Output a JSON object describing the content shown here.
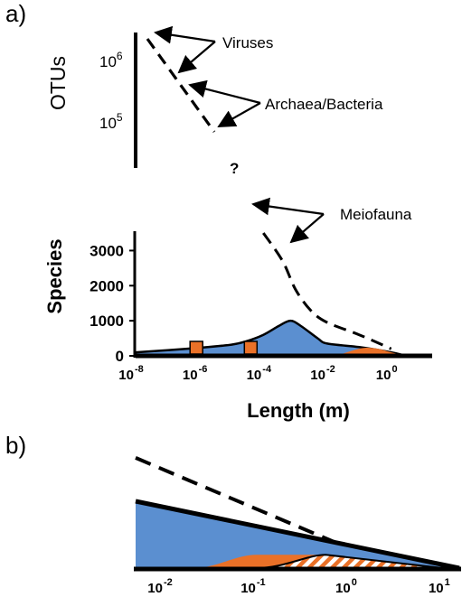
{
  "panel_a_label": "a)",
  "panel_b_label": "b)",
  "chart_data": [
    {
      "panel": "a) upper",
      "type": "line",
      "ylabel": "OTUs",
      "yscale": "log",
      "yticks": [
        {
          "base": "10",
          "exp": "6"
        },
        {
          "base": "10",
          "exp": "5"
        }
      ],
      "annotations": [
        "Viruses",
        "Archaea/Bacteria",
        "?"
      ]
    },
    {
      "panel": "a) lower",
      "type": "area",
      "xlabel": "Length (m)",
      "ylabel": "Species",
      "xscale": "log",
      "xlim": [
        1e-08,
        10
      ],
      "ylim": [
        0,
        3500
      ],
      "yticks": [
        "0",
        "1000",
        "2000",
        "3000"
      ],
      "xticks": [
        {
          "base": "10",
          "exp": "-8"
        },
        {
          "base": "10",
          "exp": "-6"
        },
        {
          "base": "10",
          "exp": "-4"
        },
        {
          "base": "10",
          "exp": "-2"
        },
        {
          "base": "10",
          "exp": "0"
        }
      ],
      "annotations": [
        "Meiofauna"
      ],
      "colors": {
        "blue": "#5b8fd0",
        "orange": "#ea7128",
        "black": "#000000"
      },
      "series": [
        {
          "style": "filled-blue",
          "points": [
            [
              1e-08,
              100
            ],
            [
              1e-07,
              160
            ],
            [
              1e-06,
              230
            ],
            [
              1e-05,
              320
            ],
            [
              3e-05,
              420
            ],
            [
              0.0001,
              600
            ],
            [
              0.0003,
              850
            ],
            [
              0.0007,
              1000
            ],
            [
              0.0015,
              850
            ],
            [
              0.005,
              500
            ],
            [
              0.01,
              350
            ],
            [
              0.1,
              250
            ],
            [
              1,
              100
            ],
            [
              3,
              0
            ]
          ]
        },
        {
          "style": "filled-orange",
          "points": [
            [
              0.02,
              0
            ],
            [
              0.06,
              150
            ],
            [
              0.15,
              230
            ],
            [
              0.4,
              200
            ],
            [
              1,
              100
            ],
            [
              3,
              0
            ]
          ]
        },
        {
          "style": "dashed",
          "points": [
            [
              0.0001,
              3500
            ],
            [
              0.0004,
              2700
            ],
            [
              0.001,
              1900
            ],
            [
              0.003,
              1300
            ],
            [
              0.01,
              950
            ],
            [
              0.1,
              600
            ],
            [
              1,
              200
            ]
          ]
        },
        {
          "style": "markers-orange-square",
          "points": [
            [
              8e-07,
              0
            ],
            [
              4e-05,
              0
            ]
          ]
        }
      ]
    },
    {
      "panel": "b)",
      "type": "area",
      "xscale": "log",
      "xlim": [
        0.005,
        15
      ],
      "xticks": [
        {
          "base": "10",
          "exp": "-2"
        },
        {
          "base": "10",
          "exp": "-1"
        },
        {
          "base": "10",
          "exp": "0"
        },
        {
          "base": "10",
          "exp": "1"
        }
      ],
      "colors": {
        "blue": "#5b8fd0",
        "orange": "#ea7128",
        "hatch": "#ea7128"
      },
      "series": [
        {
          "style": "filled-blue-black-top-edge",
          "points": [
            [
              0.005,
              1.0
            ],
            [
              15,
              0.0
            ]
          ]
        },
        {
          "style": "filled-orange",
          "points": [
            [
              0.02,
              0.0
            ],
            [
              0.1,
              0.2
            ],
            [
              0.6,
              0.2
            ],
            [
              10,
              0.0
            ]
          ]
        },
        {
          "style": "hatched-orange",
          "points": [
            [
              0.1,
              0.0
            ],
            [
              0.55,
              0.2
            ],
            [
              10,
              0.0
            ]
          ]
        },
        {
          "style": "dashed",
          "points": [
            [
              0.005,
              1.65
            ],
            [
              0.8,
              0.35
            ]
          ]
        }
      ]
    }
  ]
}
